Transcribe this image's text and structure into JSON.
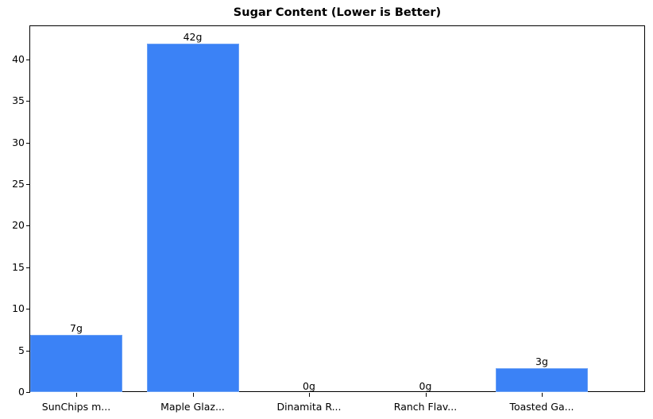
{
  "chart_data": {
    "type": "bar",
    "title": "Sugar Content (Lower is Better)",
    "xlabel": "",
    "ylabel": "",
    "categories": [
      "SunChips m...",
      "Maple Glaz...",
      "Dinamita R...",
      "Ranch Flav...",
      "Toasted Ga..."
    ],
    "values": [
      7,
      42,
      0,
      0,
      3
    ],
    "value_labels": [
      "7g",
      "42g",
      "0g",
      "0g",
      "3g"
    ],
    "ylim": [
      0,
      44.1
    ],
    "yticks": [
      0,
      5,
      10,
      15,
      20,
      25,
      30,
      35,
      40
    ],
    "grid": false,
    "legend": null,
    "bar_color": "#3b82f6"
  }
}
